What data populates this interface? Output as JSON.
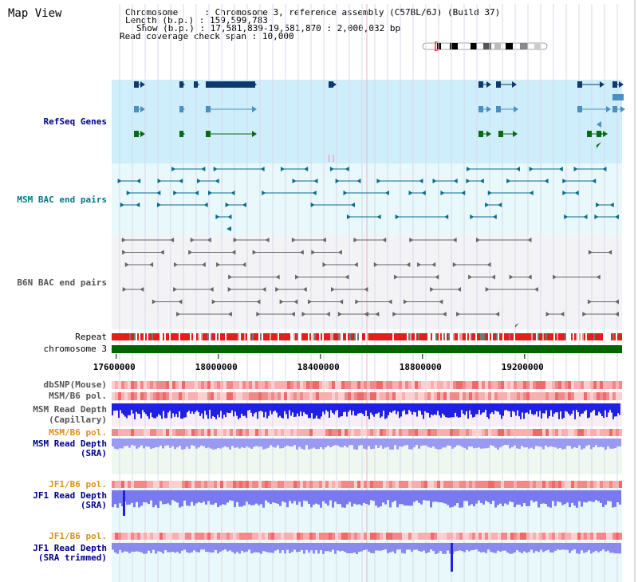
{
  "app": {
    "title": "Map View"
  },
  "header": {
    "chromosome_key": "Chromosome     ",
    "chromosome_val": "Chromosome 3, reference assembly (C57BL/6J) (Build 37)",
    "length_key": "Length (b.p.) ",
    "length_val": "159,599,783",
    "show_key": "Show (b.p.) ",
    "show_val": "17,581,839-19,581,870 : 2,000,032 bp",
    "coverage_key": "Read coverage check span ",
    "coverage_val": "10,000"
  },
  "tracks": {
    "refseq": "RefSeq Genes",
    "msm_bac": "MSM BAC end pairs",
    "b6n_bac": "B6N BAC end pairs",
    "repeat": "Repeat",
    "chromosome": "chromosome 3",
    "dbsnp": "dbSNP(Mouse)",
    "msm_pol": "MSM/B6 pol.",
    "msm_depth_cap_1": "MSM Read Depth",
    "msm_depth_cap_2": "(Capillary)",
    "msm_pol_2": "MSM/B6 pol.",
    "msm_depth_sra_1": "MSM Read Depth",
    "msm_depth_sra_2": "(SRA)",
    "jf1_pol": "JF1/B6 pol.",
    "jf1_depth_sra_1": "JF1 Read Depth",
    "jf1_depth_sra_2": "(SRA)",
    "jf1_pol_2": "JF1/B6 pol.",
    "jf1_depth_trim_1": "JF1 Read Depth",
    "jf1_depth_trim_2": "(SRA trimmed)"
  },
  "axis": {
    "ticks": [
      {
        "value": 17600000,
        "label": "17600000"
      },
      {
        "value": 18000000,
        "label": "18000000"
      },
      {
        "value": 18400000,
        "label": "18400000"
      },
      {
        "value": 18800000,
        "label": "18800000"
      },
      {
        "value": 19200000,
        "label": "19200000"
      }
    ],
    "range": [
      17581839,
      19581870
    ]
  },
  "colors": {
    "track_bg_blue": "#cfeefb",
    "track_bg_light": "#e8f8fb",
    "track_bg_grey": "#f3f3f5",
    "refseq_dark": "#0d3a6e",
    "refseq_mid": "#4a90c0",
    "refseq_green": "#0a6a14",
    "bac_msm": "#0d6a8c",
    "bac_b6n": "#666666",
    "chromosome": "#006400",
    "repeat_red": "#e0201c",
    "depth_blue": "#2020e0",
    "depth_light": "#7a7aee",
    "pol_pink": "#f39a9a",
    "label_blue": "#00008b",
    "label_teal": "#007a8a",
    "label_grey": "#555555",
    "label_orange": "#e09010"
  }
}
